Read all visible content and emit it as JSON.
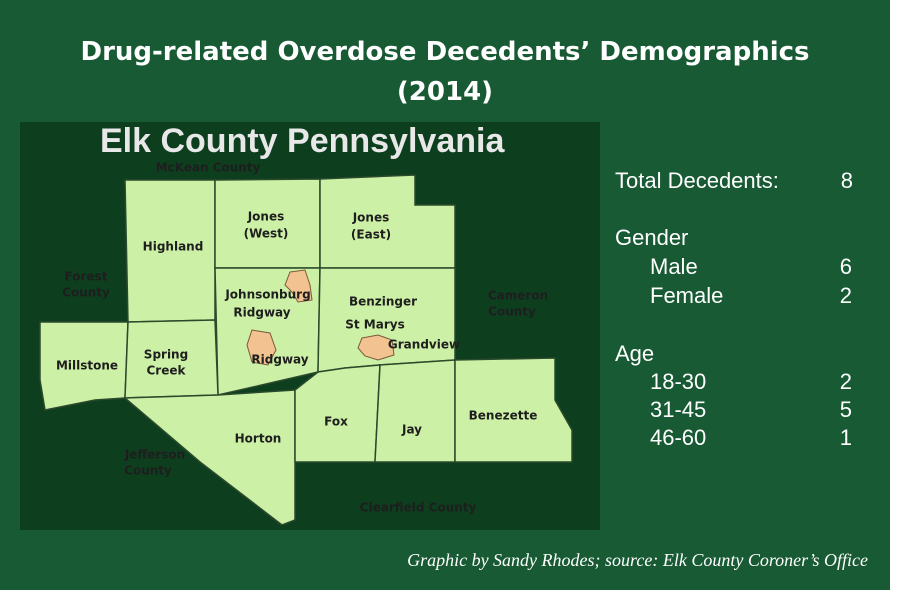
{
  "header": {
    "title": [
      "Drug-related Overdose Decedents’ Demographics",
      "(2014)"
    ]
  },
  "map": {
    "title": "Elk County Pennsylvania",
    "labels": [
      [
        "McKean County"
      ],
      [
        "Highland"
      ],
      [
        "Jones",
        "(West)"
      ],
      [
        "Jones",
        "(East)"
      ],
      [
        "Forest",
        "County"
      ],
      [
        "Johnsonburg"
      ],
      [
        "Ridgway"
      ],
      [
        "Benzinger"
      ],
      [
        "Cameron",
        "County"
      ],
      [
        "St Marys"
      ],
      [
        "Grandview"
      ],
      [
        "Millstone"
      ],
      [
        "Spring",
        "Creek"
      ],
      [
        "Ridgway"
      ],
      [
        "Horton"
      ],
      [
        "Fox"
      ],
      [
        "Jay"
      ],
      [
        "Benezette"
      ],
      [
        "Jefferson",
        "County"
      ],
      [
        "Clearfield County"
      ]
    ]
  },
  "stats": {
    "total": {
      "label": "Total Decedents:",
      "value": 8
    },
    "gender": {
      "label": "Gender",
      "rows": [
        {
          "label": "Male",
          "value": 6
        },
        {
          "label": "Female",
          "value": 2
        }
      ]
    },
    "age": {
      "label": "Age",
      "rows": [
        {
          "label": "18-30",
          "value": 2
        },
        {
          "label": "31-45",
          "value": 5
        },
        {
          "label": "46-60",
          "value": 1
        }
      ]
    }
  },
  "footer": {
    "credit": "Graphic by Sandy Rhodes; source: Elk County Coroner’s Office"
  }
}
